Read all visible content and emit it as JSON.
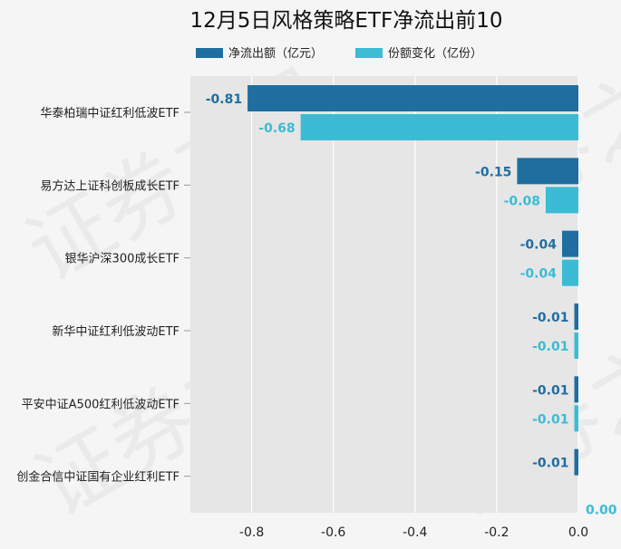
{
  "chart_data": {
    "type": "bar",
    "orientation": "horizontal",
    "title": "12月5日风格策略ETF净流出前10",
    "categories": [
      "华泰柏瑞中证红利低波ETF",
      "易方达上证科创板成长ETF",
      "银华沪深300成长ETF",
      "新华中证红利低波动ETF",
      "平安中证A500红利低波动ETF",
      "创金合信中证国有企业红利ETF"
    ],
    "series": [
      {
        "name": "净流出额（亿元）",
        "color": "#1f6ea0",
        "values": [
          -0.81,
          -0.15,
          -0.04,
          -0.01,
          -0.01,
          -0.01
        ],
        "labels": [
          "-0.81",
          "-0.15",
          "-0.04",
          "-0.01",
          "-0.01",
          "-0.01"
        ]
      },
      {
        "name": "份额变化（亿份）",
        "color": "#3bbcd4",
        "values": [
          -0.68,
          -0.08,
          -0.04,
          -0.01,
          -0.01,
          0.0
        ],
        "labels": [
          "-0.68",
          "-0.08",
          "-0.04",
          "-0.01",
          "-0.01",
          "0.00"
        ]
      }
    ],
    "xlim": [
      -0.95,
      0.0
    ],
    "xticks": [
      -0.8,
      -0.6,
      -0.4,
      -0.2,
      0.0
    ],
    "xtick_labels": [
      "-0.8",
      "-0.6",
      "-0.4",
      "-0.2",
      "0.0"
    ],
    "grid": true,
    "legend": "top"
  },
  "watermark": "证券之星"
}
